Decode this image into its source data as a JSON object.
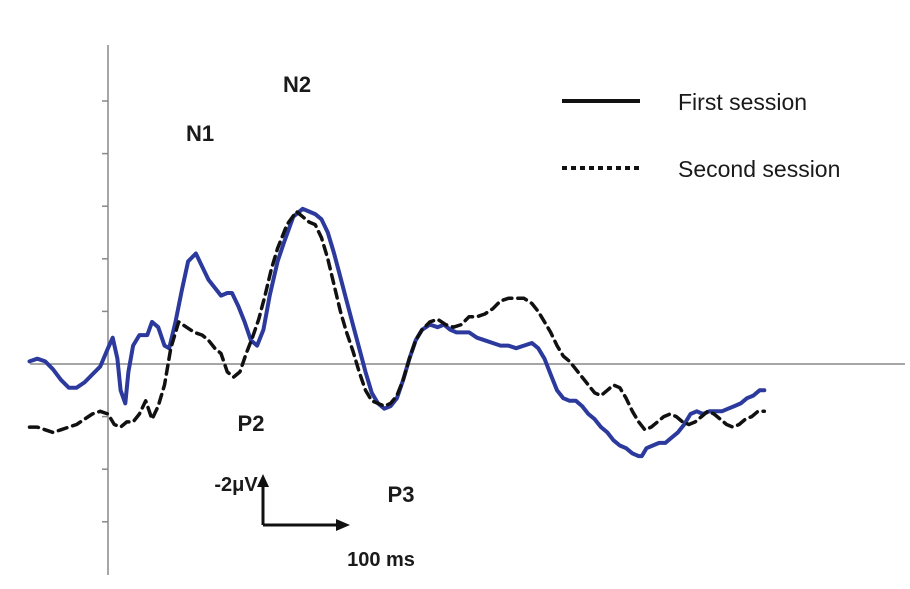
{
  "chart_data": {
    "type": "line",
    "title": "",
    "xlabel": "",
    "ylabel": "",
    "grid": false,
    "legend_position": "top-right",
    "y_inverted": true,
    "xlim": [
      -50,
      620
    ],
    "ylim": [
      -4.6,
      10.2
    ],
    "series": [
      {
        "name": "First session",
        "color": "#2b3a9c",
        "style": "solid",
        "points": [
          [
            -50,
            0.1
          ],
          [
            -45,
            0.2
          ],
          [
            -40,
            0.1
          ],
          [
            -35,
            -0.2
          ],
          [
            -30,
            -0.6
          ],
          [
            -25,
            -0.9
          ],
          [
            -20,
            -0.9
          ],
          [
            -15,
            -0.7
          ],
          [
            -10,
            -0.4
          ],
          [
            -5,
            -0.1
          ],
          [
            0,
            0.6
          ],
          [
            3,
            1.0
          ],
          [
            6,
            0.2
          ],
          [
            8,
            -1.0
          ],
          [
            11,
            -1.5
          ],
          [
            13,
            -0.3
          ],
          [
            16,
            0.7
          ],
          [
            20,
            1.1
          ],
          [
            25,
            1.1
          ],
          [
            28,
            1.6
          ],
          [
            32,
            1.4
          ],
          [
            36,
            0.7
          ],
          [
            39,
            0.6
          ],
          [
            43,
            1.6
          ],
          [
            47,
            2.8
          ],
          [
            51,
            3.9
          ],
          [
            56,
            4.2
          ],
          [
            60,
            3.7
          ],
          [
            64,
            3.2
          ],
          [
            68,
            2.9
          ],
          [
            72,
            2.6
          ],
          [
            76,
            2.7
          ],
          [
            79,
            2.7
          ],
          [
            83,
            2.2
          ],
          [
            87,
            1.6
          ],
          [
            91,
            0.9
          ],
          [
            95,
            0.7
          ],
          [
            99,
            1.3
          ],
          [
            103,
            2.6
          ],
          [
            108,
            3.9
          ],
          [
            112,
            4.6
          ],
          [
            118,
            5.6
          ],
          [
            124,
            5.9
          ],
          [
            128,
            5.8
          ],
          [
            132,
            5.7
          ],
          [
            136,
            5.5
          ],
          [
            140,
            5.0
          ],
          [
            144,
            4.2
          ],
          [
            148,
            3.3
          ],
          [
            152,
            2.4
          ],
          [
            156,
            1.5
          ],
          [
            160,
            0.6
          ],
          [
            164,
            -0.3
          ],
          [
            168,
            -1.1
          ],
          [
            172,
            -1.5
          ],
          [
            176,
            -1.7
          ],
          [
            180,
            -1.6
          ],
          [
            184,
            -1.3
          ],
          [
            188,
            -0.6
          ],
          [
            192,
            0.2
          ],
          [
            196,
            0.9
          ],
          [
            200,
            1.3
          ],
          [
            205,
            1.5
          ],
          [
            210,
            1.4
          ],
          [
            214,
            1.5
          ],
          [
            218,
            1.3
          ],
          [
            222,
            1.2
          ],
          [
            226,
            1.2
          ],
          [
            230,
            1.2
          ],
          [
            235,
            1.0
          ],
          [
            240,
            0.9
          ],
          [
            245,
            0.8
          ],
          [
            250,
            0.7
          ],
          [
            255,
            0.7
          ],
          [
            260,
            0.6
          ],
          [
            265,
            0.7
          ],
          [
            270,
            0.8
          ],
          [
            274,
            0.6
          ],
          [
            278,
            0.2
          ],
          [
            282,
            -0.4
          ],
          [
            286,
            -1.0
          ],
          [
            290,
            -1.3
          ],
          [
            294,
            -1.4
          ],
          [
            298,
            -1.4
          ],
          [
            302,
            -1.6
          ],
          [
            306,
            -1.9
          ],
          [
            310,
            -2.1
          ],
          [
            314,
            -2.4
          ],
          [
            318,
            -2.6
          ],
          [
            322,
            -2.9
          ],
          [
            326,
            -3.1
          ],
          [
            330,
            -3.2
          ],
          [
            334,
            -3.4
          ],
          [
            338,
            -3.5
          ],
          [
            340,
            -3.5
          ],
          [
            343,
            -3.2
          ],
          [
            347,
            -3.1
          ],
          [
            351,
            -3.0
          ],
          [
            355,
            -3.0
          ],
          [
            359,
            -2.8
          ],
          [
            363,
            -2.6
          ],
          [
            367,
            -2.3
          ],
          [
            371,
            -1.9
          ],
          [
            375,
            -1.8
          ],
          [
            379,
            -1.9
          ],
          [
            383,
            -1.8
          ],
          [
            387,
            -1.8
          ],
          [
            391,
            -1.8
          ],
          [
            395,
            -1.7
          ],
          [
            399,
            -1.6
          ],
          [
            403,
            -1.5
          ],
          [
            407,
            -1.3
          ],
          [
            411,
            -1.2
          ],
          [
            415,
            -1.0
          ],
          [
            418,
            -1.0
          ]
        ]
      },
      {
        "name": "Second session",
        "color": "#111111",
        "style": "dashed",
        "points": [
          [
            -50,
            -2.4
          ],
          [
            -45,
            -2.4
          ],
          [
            -40,
            -2.5
          ],
          [
            -35,
            -2.6
          ],
          [
            -30,
            -2.5
          ],
          [
            -25,
            -2.4
          ],
          [
            -20,
            -2.3
          ],
          [
            -15,
            -2.1
          ],
          [
            -10,
            -1.9
          ],
          [
            -5,
            -1.8
          ],
          [
            0,
            -1.9
          ],
          [
            4,
            -2.3
          ],
          [
            8,
            -2.4
          ],
          [
            12,
            -2.2
          ],
          [
            16,
            -2.2
          ],
          [
            20,
            -1.9
          ],
          [
            24,
            -1.4
          ],
          [
            28,
            -2.1
          ],
          [
            32,
            -1.6
          ],
          [
            36,
            -0.8
          ],
          [
            40,
            0.6
          ],
          [
            45,
            1.6
          ],
          [
            50,
            1.4
          ],
          [
            55,
            1.2
          ],
          [
            60,
            1.1
          ],
          [
            64,
            0.9
          ],
          [
            68,
            0.6
          ],
          [
            72,
            0.4
          ],
          [
            76,
            -0.3
          ],
          [
            80,
            -0.5
          ],
          [
            84,
            -0.3
          ],
          [
            88,
            0.4
          ],
          [
            92,
            1.0
          ],
          [
            96,
            1.7
          ],
          [
            100,
            2.6
          ],
          [
            104,
            3.6
          ],
          [
            108,
            4.4
          ],
          [
            114,
            5.3
          ],
          [
            120,
            5.8
          ],
          [
            124,
            5.6
          ],
          [
            128,
            5.4
          ],
          [
            132,
            5.3
          ],
          [
            136,
            4.8
          ],
          [
            140,
            4.0
          ],
          [
            144,
            3.0
          ],
          [
            148,
            2.0
          ],
          [
            152,
            1.2
          ],
          [
            156,
            0.5
          ],
          [
            160,
            -0.3
          ],
          [
            164,
            -1.0
          ],
          [
            168,
            -1.4
          ],
          [
            172,
            -1.5
          ],
          [
            176,
            -1.6
          ],
          [
            180,
            -1.5
          ],
          [
            184,
            -1.2
          ],
          [
            188,
            -0.6
          ],
          [
            192,
            0.2
          ],
          [
            196,
            0.9
          ],
          [
            200,
            1.3
          ],
          [
            205,
            1.6
          ],
          [
            210,
            1.7
          ],
          [
            215,
            1.5
          ],
          [
            220,
            1.4
          ],
          [
            225,
            1.5
          ],
          [
            230,
            1.8
          ],
          [
            235,
            1.8
          ],
          [
            240,
            1.9
          ],
          [
            245,
            2.1
          ],
          [
            250,
            2.4
          ],
          [
            255,
            2.5
          ],
          [
            260,
            2.5
          ],
          [
            265,
            2.5
          ],
          [
            270,
            2.3
          ],
          [
            274,
            2.0
          ],
          [
            278,
            1.6
          ],
          [
            282,
            1.2
          ],
          [
            286,
            0.7
          ],
          [
            290,
            0.3
          ],
          [
            294,
            0.1
          ],
          [
            298,
            -0.2
          ],
          [
            302,
            -0.5
          ],
          [
            306,
            -0.8
          ],
          [
            310,
            -1.1
          ],
          [
            314,
            -1.2
          ],
          [
            318,
            -1.0
          ],
          [
            322,
            -0.8
          ],
          [
            326,
            -0.9
          ],
          [
            330,
            -1.3
          ],
          [
            334,
            -1.8
          ],
          [
            338,
            -2.2
          ],
          [
            342,
            -2.5
          ],
          [
            346,
            -2.4
          ],
          [
            350,
            -2.2
          ],
          [
            354,
            -2.0
          ],
          [
            358,
            -1.9
          ],
          [
            362,
            -2.0
          ],
          [
            366,
            -2.2
          ],
          [
            370,
            -2.3
          ],
          [
            374,
            -2.2
          ],
          [
            378,
            -2.0
          ],
          [
            382,
            -1.8
          ],
          [
            386,
            -1.9
          ],
          [
            390,
            -2.1
          ],
          [
            394,
            -2.3
          ],
          [
            398,
            -2.4
          ],
          [
            402,
            -2.3
          ],
          [
            406,
            -2.1
          ],
          [
            410,
            -2.0
          ],
          [
            414,
            -1.8
          ],
          [
            418,
            -1.8
          ]
        ]
      }
    ],
    "annotations": [
      {
        "label": "N1",
        "x": 56,
        "y": 4.2
      },
      {
        "label": "N2",
        "x": 124,
        "y": 5.9
      },
      {
        "label": "P2",
        "x": 80,
        "y": -0.5
      },
      {
        "label": "P3",
        "x": 176,
        "y": -1.7
      }
    ],
    "scale_bar": {
      "amplitude_label": "-2μV",
      "time_label": "100 ms"
    }
  },
  "legend": {
    "solid_label": "First session",
    "dashed_label": "Second session"
  },
  "peaks": {
    "n1": "N1",
    "n2": "N2",
    "p2": "P2",
    "p3": "P3"
  },
  "scale": {
    "amplitude": "-2μV",
    "time": "100 ms"
  }
}
